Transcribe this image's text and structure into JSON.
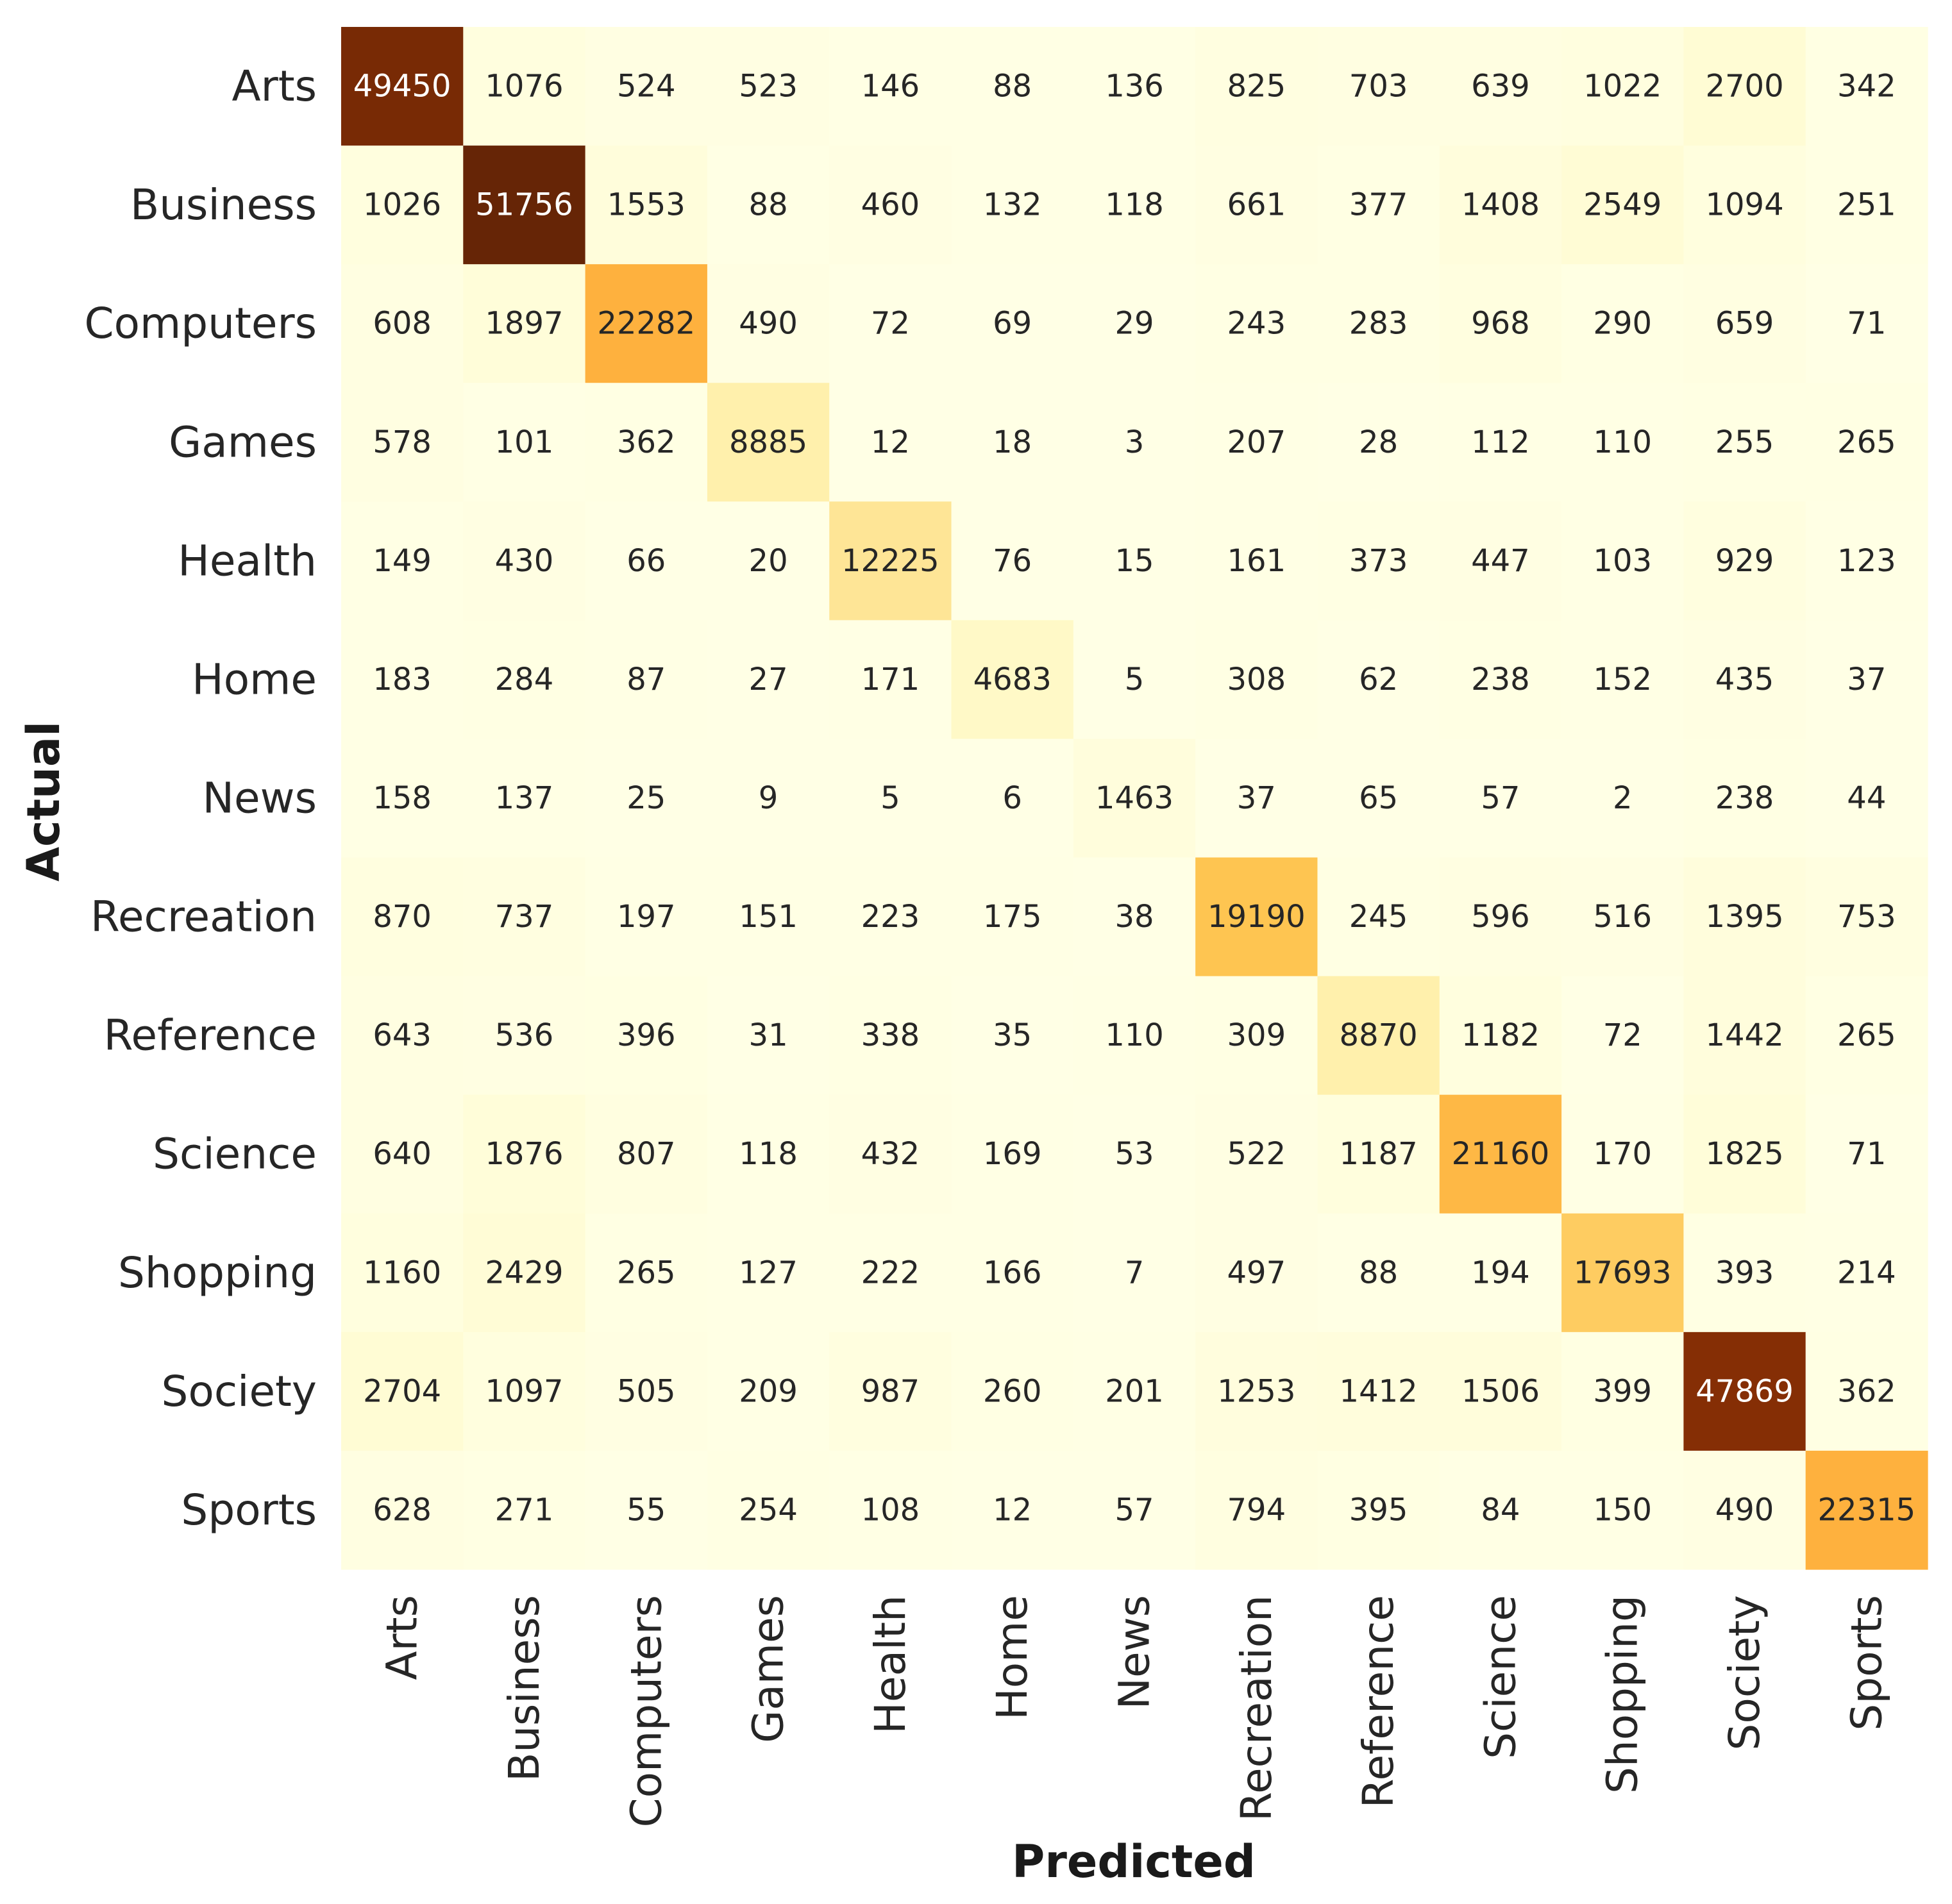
{
  "chart_data": {
    "type": "heatmap",
    "title": "",
    "xlabel": "Predicted",
    "ylabel": "Actual",
    "x_categories": [
      "Arts",
      "Business",
      "Computers",
      "Games",
      "Health",
      "Home",
      "News",
      "Recreation",
      "Reference",
      "Science",
      "Shopping",
      "Society",
      "Sports"
    ],
    "y_categories": [
      "Arts",
      "Business",
      "Computers",
      "Games",
      "Health",
      "Home",
      "News",
      "Recreation",
      "Reference",
      "Science",
      "Shopping",
      "Society",
      "Sports"
    ],
    "values": [
      [
        49450,
        1076,
        524,
        523,
        146,
        88,
        136,
        825,
        703,
        639,
        1022,
        2700,
        342
      ],
      [
        1026,
        51756,
        1553,
        88,
        460,
        132,
        118,
        661,
        377,
        1408,
        2549,
        1094,
        251
      ],
      [
        608,
        1897,
        22282,
        490,
        72,
        69,
        29,
        243,
        283,
        968,
        290,
        659,
        71
      ],
      [
        578,
        101,
        362,
        8885,
        12,
        18,
        3,
        207,
        28,
        112,
        110,
        255,
        265
      ],
      [
        149,
        430,
        66,
        20,
        12225,
        76,
        15,
        161,
        373,
        447,
        103,
        929,
        123
      ],
      [
        183,
        284,
        87,
        27,
        171,
        4683,
        5,
        308,
        62,
        238,
        152,
        435,
        37
      ],
      [
        158,
        137,
        25,
        9,
        5,
        6,
        1463,
        37,
        65,
        57,
        2,
        238,
        44
      ],
      [
        870,
        737,
        197,
        151,
        223,
        175,
        38,
        19190,
        245,
        596,
        516,
        1395,
        753
      ],
      [
        643,
        536,
        396,
        31,
        338,
        35,
        110,
        309,
        8870,
        1182,
        72,
        1442,
        265
      ],
      [
        640,
        1876,
        807,
        118,
        432,
        169,
        53,
        522,
        1187,
        21160,
        170,
        1825,
        71
      ],
      [
        1160,
        2429,
        265,
        127,
        222,
        166,
        7,
        497,
        88,
        194,
        17693,
        393,
        214
      ],
      [
        2704,
        1097,
        505,
        209,
        987,
        260,
        201,
        1253,
        1412,
        1506,
        399,
        47869,
        362
      ],
      [
        628,
        271,
        55,
        254,
        108,
        12,
        57,
        794,
        395,
        84,
        150,
        490,
        22315
      ]
    ],
    "vmin": 0,
    "vmax": 51756,
    "colormap": "YlOrBr",
    "colorbar": false,
    "grid": false
  }
}
